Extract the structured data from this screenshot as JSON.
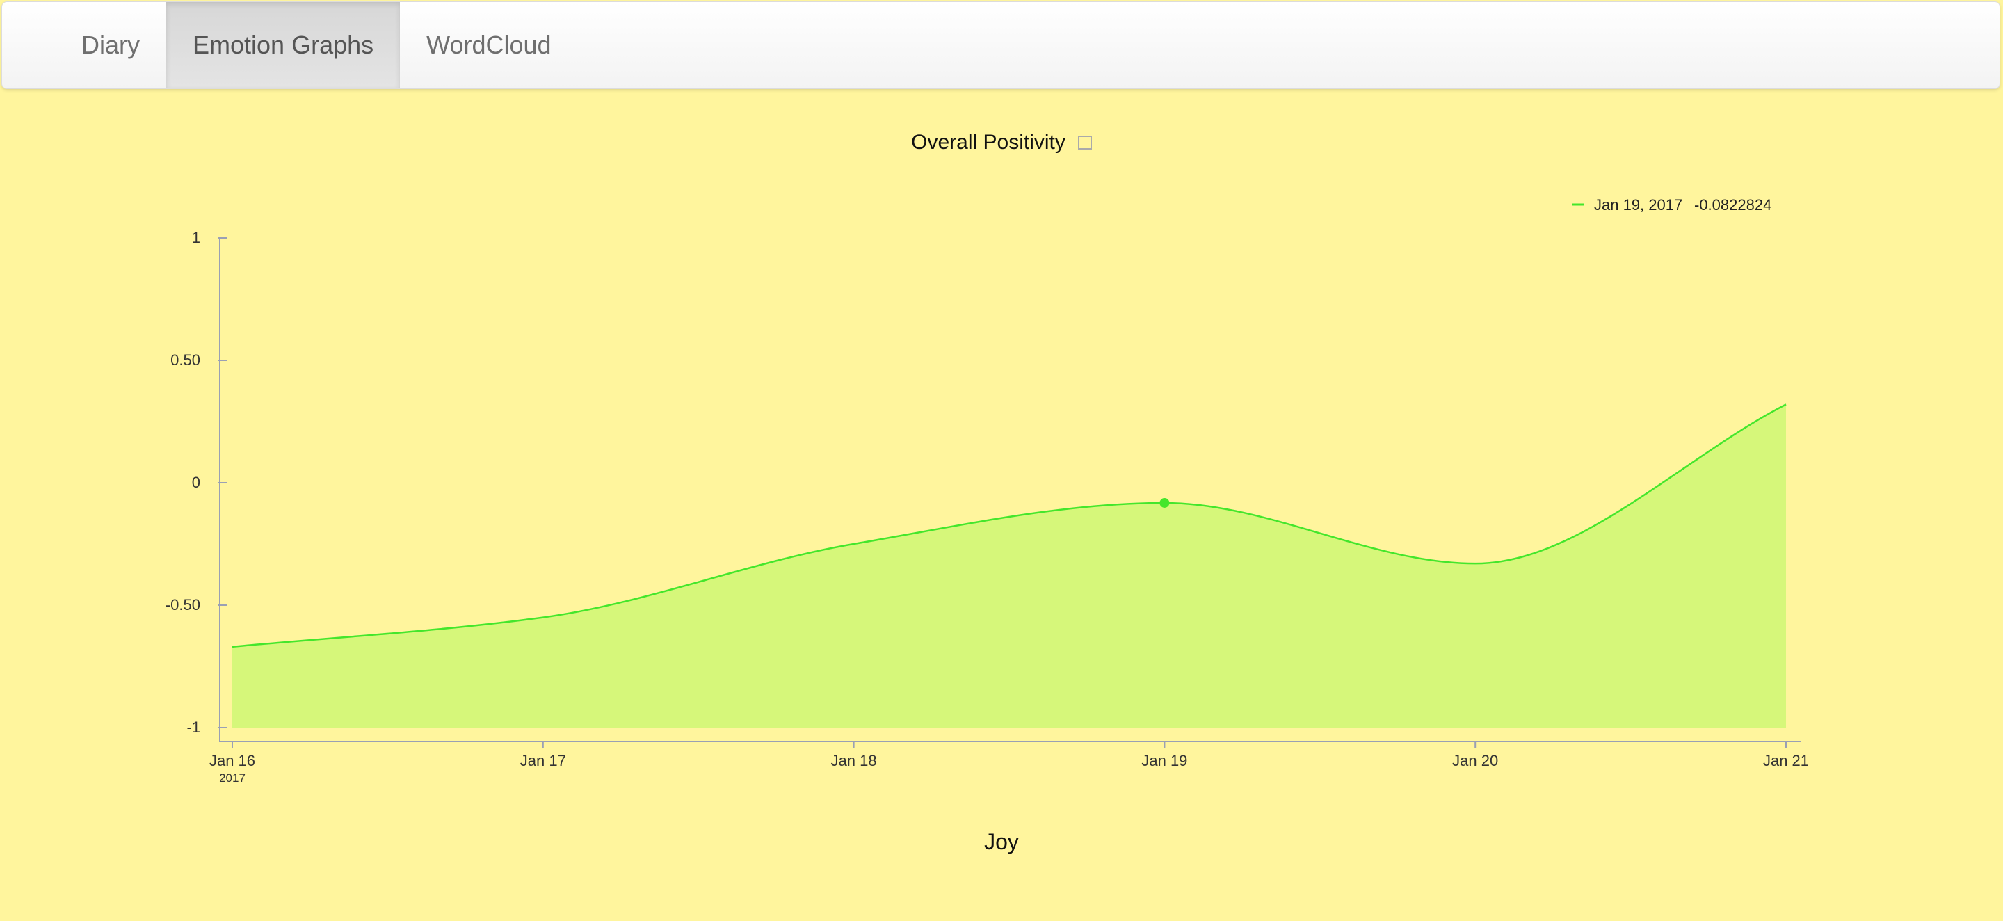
{
  "nav": {
    "tabs": [
      {
        "label": "Diary",
        "active": false
      },
      {
        "label": "Emotion Graphs",
        "active": true
      },
      {
        "label": "WordCloud",
        "active": false
      }
    ]
  },
  "chart_data": {
    "type": "area",
    "title": "Overall Positivity",
    "x": [
      "2017-01-16",
      "2017-01-17",
      "2017-01-18",
      "2017-01-19",
      "2017-01-20",
      "2017-01-21"
    ],
    "x_tick_labels": [
      "Jan 16",
      "Jan 17",
      "Jan 18",
      "Jan 19",
      "Jan 20",
      "Jan 21"
    ],
    "x_tick_sublabel": "2017",
    "series": [
      {
        "values": [
          -0.67,
          -0.55,
          -0.25,
          -0.0822824,
          -0.33,
          0.32
        ],
        "color": "#44e62c",
        "fill": "#d6f77a"
      }
    ],
    "ylim": [
      -1,
      1
    ],
    "y_ticks": [
      1,
      0.5,
      0,
      -0.5,
      -1
    ],
    "y_tick_labels": [
      "1",
      "0.50",
      "0",
      "-0.50",
      "-1"
    ],
    "tooltip": {
      "date": "Jan 19, 2017",
      "value": "-0.0822824",
      "point_index": 3
    },
    "grid": false
  },
  "next_chart": {
    "title": "Joy"
  }
}
